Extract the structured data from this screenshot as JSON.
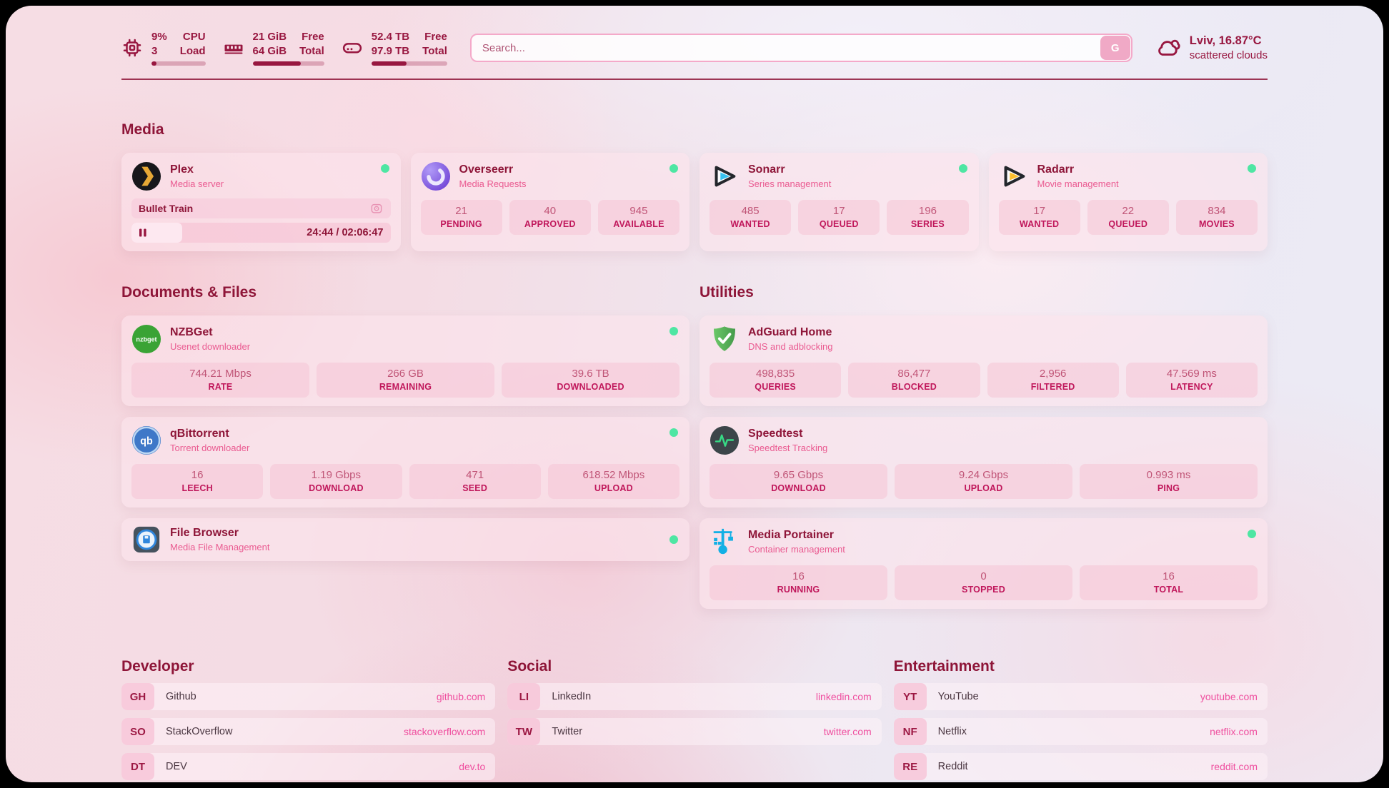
{
  "topbar": {
    "cpu": {
      "icon": "cpu-icon",
      "value_top": "9%",
      "value_bottom": "3",
      "label_top": "CPU",
      "label_bottom": "Load",
      "progress_pct": 9
    },
    "memory": {
      "icon": "memory-icon",
      "value_top": "21 GiB",
      "value_bottom": "64 GiB",
      "label_top": "Free",
      "label_bottom": "Total",
      "progress_pct": 67
    },
    "disk": {
      "icon": "disk-icon",
      "value_top": "52.4 TB",
      "value_bottom": "97.9 TB",
      "label_top": "Free",
      "label_bottom": "Total",
      "progress_pct": 46
    },
    "search": {
      "placeholder": "Search...",
      "button_label": "G"
    },
    "weather": {
      "icon": "cloud-icon",
      "location": "Lviv, 16.87°C",
      "condition": "scattered clouds"
    }
  },
  "sections": {
    "media": {
      "title": "Media",
      "plex": {
        "icon": "plex-icon",
        "name": "Plex",
        "subtitle": "Media server",
        "online": true,
        "now_playing": {
          "title": "Bullet Train",
          "time": "24:44 / 02:06:47",
          "progress_pct": 19.5
        }
      },
      "apps": [
        {
          "icon": "overseerr-icon",
          "name": "Overseerr",
          "subtitle": "Media Requests",
          "online": true,
          "stats": [
            {
              "value": "21",
              "label": "PENDING"
            },
            {
              "value": "40",
              "label": "APPROVED"
            },
            {
              "value": "945",
              "label": "AVAILABLE"
            }
          ]
        },
        {
          "icon": "sonarr-icon",
          "name": "Sonarr",
          "subtitle": "Series management",
          "online": true,
          "stats": [
            {
              "value": "485",
              "label": "WANTED"
            },
            {
              "value": "17",
              "label": "QUEUED"
            },
            {
              "value": "196",
              "label": "SERIES"
            }
          ]
        },
        {
          "icon": "radarr-icon",
          "name": "Radarr",
          "subtitle": "Movie management",
          "online": true,
          "stats": [
            {
              "value": "17",
              "label": "WANTED"
            },
            {
              "value": "22",
              "label": "QUEUED"
            },
            {
              "value": "834",
              "label": "MOVIES"
            }
          ]
        }
      ]
    },
    "documents": {
      "title": "Documents & Files",
      "apps": [
        {
          "icon": "nzbget-icon",
          "name": "NZBGet",
          "subtitle": "Usenet downloader",
          "online": true,
          "stats": [
            {
              "value": "744.21 Mbps",
              "label": "RATE"
            },
            {
              "value": "266 GB",
              "label": "REMAINING"
            },
            {
              "value": "39.6 TB",
              "label": "DOWNLOADED"
            }
          ]
        },
        {
          "icon": "qbittorrent-icon",
          "name": "qBittorrent",
          "subtitle": "Torrent downloader",
          "online": true,
          "stats": [
            {
              "value": "16",
              "label": "LEECH"
            },
            {
              "value": "1.19 Gbps",
              "label": "DOWNLOAD"
            },
            {
              "value": "471",
              "label": "SEED"
            },
            {
              "value": "618.52 Mbps",
              "label": "UPLOAD"
            }
          ]
        },
        {
          "icon": "filebrowser-icon",
          "name": "File Browser",
          "subtitle": "Media File Management",
          "online": true,
          "stats": []
        }
      ]
    },
    "utilities": {
      "title": "Utilities",
      "apps": [
        {
          "icon": "adguard-icon",
          "name": "AdGuard Home",
          "subtitle": "DNS and adblocking",
          "online": false,
          "stats": [
            {
              "value": "498,835",
              "label": "QUERIES"
            },
            {
              "value": "86,477",
              "label": "BLOCKED"
            },
            {
              "value": "2,956",
              "label": "FILTERED"
            },
            {
              "value": "47.569 ms",
              "label": "LATENCY"
            }
          ]
        },
        {
          "icon": "speedtest-icon",
          "name": "Speedtest",
          "subtitle": "Speedtest Tracking",
          "online": false,
          "stats": [
            {
              "value": "9.65 Gbps",
              "label": "DOWNLOAD"
            },
            {
              "value": "9.24 Gbps",
              "label": "UPLOAD"
            },
            {
              "value": "0.993 ms",
              "label": "PING"
            }
          ]
        },
        {
          "icon": "portainer-icon",
          "name": "Media Portainer",
          "subtitle": "Container management",
          "online": true,
          "stats": [
            {
              "value": "16",
              "label": "RUNNING"
            },
            {
              "value": "0",
              "label": "STOPPED"
            },
            {
              "value": "16",
              "label": "TOTAL"
            }
          ]
        }
      ]
    }
  },
  "links": [
    {
      "title": "Developer",
      "items": [
        {
          "abbr": "GH",
          "label": "Github",
          "url": "github.com"
        },
        {
          "abbr": "SO",
          "label": "StackOverflow",
          "url": "stackoverflow.com"
        },
        {
          "abbr": "DT",
          "label": "DEV",
          "url": "dev.to"
        }
      ]
    },
    {
      "title": "Social",
      "items": [
        {
          "abbr": "LI",
          "label": "LinkedIn",
          "url": "linkedin.com"
        },
        {
          "abbr": "TW",
          "label": "Twitter",
          "url": "twitter.com"
        }
      ]
    },
    {
      "title": "Entertainment",
      "items": [
        {
          "abbr": "YT",
          "label": "YouTube",
          "url": "youtube.com"
        },
        {
          "abbr": "NF",
          "label": "Netflix",
          "url": "netflix.com"
        },
        {
          "abbr": "RE",
          "label": "Reddit",
          "url": "reddit.com"
        }
      ]
    }
  ],
  "theme": {
    "accent_maroon": "#8e1538",
    "stat_label_pink": "#c0175b",
    "subtitle_pink": "#ea5b91",
    "link_pink": "#ef4f9f",
    "online_green": "#4ee6a3",
    "page_corner_black": "#000000"
  }
}
